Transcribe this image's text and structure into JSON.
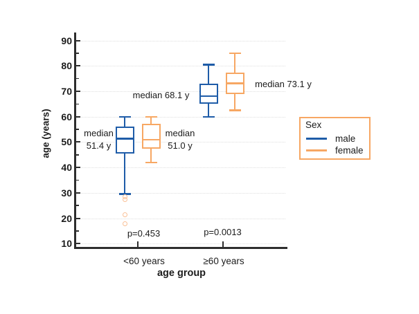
{
  "chart_data": {
    "type": "boxplot",
    "title": "",
    "xlabel": "age group",
    "ylabel": "age (years)",
    "y_axis": {
      "min": 10,
      "max": 90,
      "major_step": 10,
      "minor_step": 5,
      "ylim": [
        10,
        95
      ]
    },
    "categories": [
      "<60 years",
      "≥60 years"
    ],
    "series": [
      {
        "name": "male",
        "color": "#1e5ca8"
      },
      {
        "name": "female",
        "color": "#f7a763"
      }
    ],
    "boxes": [
      {
        "category": "<60 years",
        "series": "male",
        "whisker_low": 29.5,
        "q1": 45.5,
        "median": 51.4,
        "q3": 56.0,
        "whisker_high": 60.0
      },
      {
        "category": "<60 years",
        "series": "female",
        "whisker_low": 42.0,
        "q1": 47.5,
        "median": 51.0,
        "q3": 57.3,
        "whisker_high": 60.0
      },
      {
        "category": "≥60 years",
        "series": "male",
        "whisker_low": 60.0,
        "q1": 65.0,
        "median": 68.1,
        "q3": 73.0,
        "whisker_high": 80.5
      },
      {
        "category": "≥60 years",
        "series": "female",
        "whisker_low": 62.5,
        "q1": 69.0,
        "median": 73.1,
        "q3": 77.3,
        "whisker_high": 85.0
      }
    ],
    "outliers": [
      {
        "category": "<60 years",
        "series_position": "male",
        "color": "#fac096",
        "values": [
          28.5,
          27.4,
          21.3,
          17.9
        ]
      }
    ],
    "annotations": [
      {
        "id": "median-male-lt60",
        "lines": [
          "median",
          "51.4 y"
        ]
      },
      {
        "id": "median-female-lt60",
        "lines": [
          "median",
          "51.0 y"
        ]
      },
      {
        "id": "median-male-ge60",
        "lines": [
          "median 68.1 y"
        ]
      },
      {
        "id": "median-female-ge60",
        "lines": [
          "median 73.1 y"
        ]
      },
      {
        "id": "p-lt60",
        "lines": [
          "p=0.453"
        ]
      },
      {
        "id": "p-ge60",
        "lines": [
          "p=0.0013"
        ]
      }
    ],
    "legend": {
      "title": "Sex",
      "position": "right",
      "entries": [
        {
          "label": "male",
          "color": "#1e5ca8"
        },
        {
          "label": "female",
          "color": "#f7a763"
        }
      ]
    },
    "grid": "horizontal-dotted",
    "colors": {
      "axis": "#2d2d2d",
      "grid": "#dedede",
      "text": "#1a1a1a",
      "background": "#ffffff"
    }
  }
}
